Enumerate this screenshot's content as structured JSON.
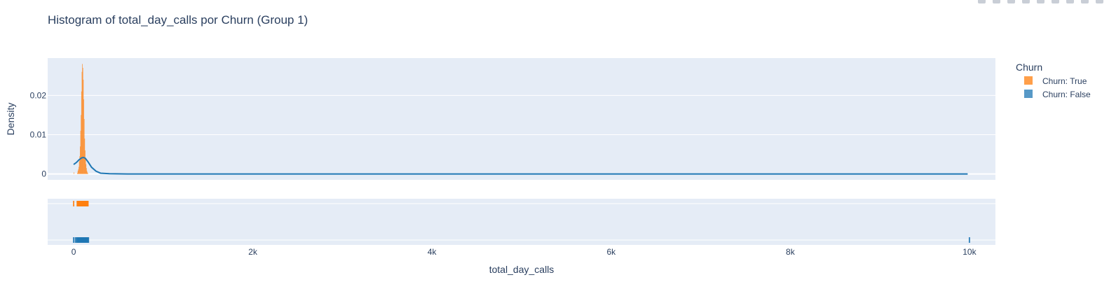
{
  "chart_data": {
    "type": "histogram",
    "title": "Histogram of total_day_calls por Churn (Group 1)",
    "xlabel": "total_day_calls",
    "ylabel": "Density",
    "xlim": [
      -290,
      10290
    ],
    "ylim": [
      -0.0015,
      0.0295
    ],
    "x_ticks": [
      {
        "value": 0,
        "label": "0"
      },
      {
        "value": 2000,
        "label": "2k"
      },
      {
        "value": 4000,
        "label": "4k"
      },
      {
        "value": 6000,
        "label": "6k"
      },
      {
        "value": 8000,
        "label": "8k"
      },
      {
        "value": 10000,
        "label": "10k"
      }
    ],
    "y_ticks": [
      {
        "value": 0,
        "label": "0"
      },
      {
        "value": 0.01,
        "label": "0.01"
      },
      {
        "value": 0.02,
        "label": "0.02"
      }
    ],
    "legend": {
      "title": "Churn",
      "placement": "right",
      "entries": [
        {
          "name": "Churn: True",
          "color": "#ff7f0e"
        },
        {
          "name": "Churn: False",
          "color": "#1f77b4"
        }
      ]
    },
    "series": [
      {
        "name": "Churn: True",
        "color": "#ff7f0e",
        "kind": "histogram",
        "bin_width": 5,
        "bins": [
          {
            "x": 0,
            "y": 0.0004
          },
          {
            "x": 40,
            "y": 0.0003
          },
          {
            "x": 45,
            "y": 0.0008
          },
          {
            "x": 50,
            "y": 0.0012
          },
          {
            "x": 55,
            "y": 0.0018
          },
          {
            "x": 60,
            "y": 0.0032
          },
          {
            "x": 65,
            "y": 0.0045
          },
          {
            "x": 70,
            "y": 0.007
          },
          {
            "x": 75,
            "y": 0.011
          },
          {
            "x": 80,
            "y": 0.015
          },
          {
            "x": 85,
            "y": 0.021
          },
          {
            "x": 90,
            "y": 0.026
          },
          {
            "x": 95,
            "y": 0.028
          },
          {
            "x": 100,
            "y": 0.027
          },
          {
            "x": 105,
            "y": 0.024
          },
          {
            "x": 110,
            "y": 0.019
          },
          {
            "x": 115,
            "y": 0.014
          },
          {
            "x": 120,
            "y": 0.009
          },
          {
            "x": 125,
            "y": 0.006
          },
          {
            "x": 130,
            "y": 0.004
          },
          {
            "x": 135,
            "y": 0.0025
          },
          {
            "x": 140,
            "y": 0.0015
          },
          {
            "x": 145,
            "y": 0.0008
          },
          {
            "x": 150,
            "y": 0.0004
          },
          {
            "x": 155,
            "y": 0.0002
          }
        ]
      },
      {
        "name": "Churn: False",
        "color": "#1f77b4",
        "kind": "density",
        "points": [
          {
            "x": 0,
            "y": 0.0024
          },
          {
            "x": 30,
            "y": 0.0029
          },
          {
            "x": 60,
            "y": 0.0036
          },
          {
            "x": 90,
            "y": 0.0041
          },
          {
            "x": 110,
            "y": 0.0042
          },
          {
            "x": 130,
            "y": 0.004
          },
          {
            "x": 160,
            "y": 0.0031
          },
          {
            "x": 200,
            "y": 0.0017
          },
          {
            "x": 250,
            "y": 0.0007
          },
          {
            "x": 300,
            "y": 0.0002
          },
          {
            "x": 400,
            "y": 5e-05
          },
          {
            "x": 600,
            "y": 0.0
          },
          {
            "x": 2000,
            "y": 0.0
          },
          {
            "x": 6000,
            "y": 0.0
          },
          {
            "x": 9980,
            "y": 0.0
          }
        ]
      }
    ],
    "rug": [
      {
        "name": "Churn: True",
        "color": "#ff7f0e",
        "values": [
          0,
          40,
          45,
          50,
          55,
          60,
          65,
          70,
          75,
          80,
          85,
          90,
          95,
          100,
          105,
          110,
          115,
          120,
          125,
          130,
          135,
          140,
          145,
          150,
          155,
          160
        ]
      },
      {
        "name": "Churn: False",
        "color": "#1f77b4",
        "values": [
          0,
          20,
          30,
          40,
          45,
          50,
          55,
          60,
          65,
          70,
          75,
          80,
          85,
          90,
          95,
          100,
          105,
          110,
          115,
          120,
          125,
          130,
          135,
          140,
          145,
          150,
          155,
          160,
          165,
          10000
        ]
      }
    ]
  }
}
